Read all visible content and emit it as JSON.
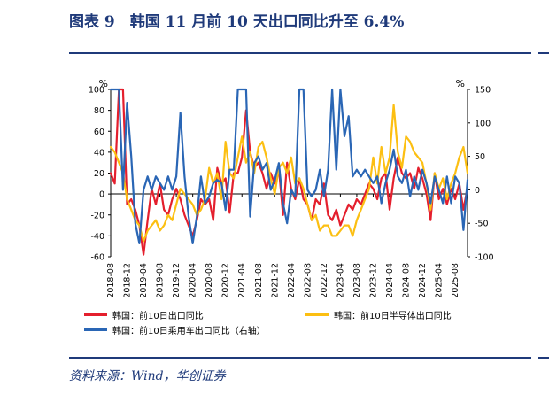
{
  "figure": {
    "title": "图表 9　韩国 11 月前 10 天出口同比升至 6.4%",
    "source": "资料来源：Wind，华创证券"
  },
  "chart_data": {
    "type": "line",
    "left_axis": {
      "unit": "%",
      "ylim": [
        -60,
        100
      ],
      "ticks": [
        "-60",
        "-40",
        "-20",
        "0",
        "20",
        "40",
        "60",
        "80",
        "100"
      ]
    },
    "right_axis": {
      "unit": "%",
      "ylim": [
        -100,
        150
      ],
      "ticks": [
        "-100",
        "-50",
        "0",
        "50",
        "100",
        "150"
      ]
    },
    "x_ticks": [
      "2018-08",
      "2018-12",
      "2019-04",
      "2019-08",
      "2019-12",
      "2020-04",
      "2020-08",
      "2020-12",
      "2021-04",
      "2021-08",
      "2021-12",
      "2022-04",
      "2022-08",
      "2022-12",
      "2023-04",
      "2023-08",
      "2023-12",
      "2024-04",
      "2024-08",
      "2024-12",
      "2025-04",
      "2025-08"
    ],
    "x_range": [
      "2018-08",
      "2025-11"
    ],
    "grid": false,
    "legend_position": "bottom",
    "series": [
      {
        "name": "韩国：前10日出口同比",
        "color": "#e41f2d",
        "axis": "left",
        "x": [
          "2018-08",
          "2018-09",
          "2018-10",
          "2018-11",
          "2018-12",
          "2019-01",
          "2019-02",
          "2019-03",
          "2019-04",
          "2019-05",
          "2019-06",
          "2019-07",
          "2019-08",
          "2019-09",
          "2019-10",
          "2019-11",
          "2019-12",
          "2020-01",
          "2020-02",
          "2020-03",
          "2020-04",
          "2020-05",
          "2020-06",
          "2020-07",
          "2020-08",
          "2020-09",
          "2020-10",
          "2020-11",
          "2020-12",
          "2021-01",
          "2021-02",
          "2021-03",
          "2021-04",
          "2021-05",
          "2021-06",
          "2021-07",
          "2021-08",
          "2021-09",
          "2021-10",
          "2021-11",
          "2021-12",
          "2022-01",
          "2022-02",
          "2022-03",
          "2022-04",
          "2022-05",
          "2022-06",
          "2022-07",
          "2022-08",
          "2022-09",
          "2022-10",
          "2022-11",
          "2022-12",
          "2023-01",
          "2023-02",
          "2023-03",
          "2023-04",
          "2023-05",
          "2023-06",
          "2023-07",
          "2023-08",
          "2023-09",
          "2023-10",
          "2023-11",
          "2023-12",
          "2024-01",
          "2024-02",
          "2024-03",
          "2024-04",
          "2024-05",
          "2024-06",
          "2024-07",
          "2024-08",
          "2024-09",
          "2024-10",
          "2024-11",
          "2024-12",
          "2025-01",
          "2025-02",
          "2025-03",
          "2025-04",
          "2025-05",
          "2025-06",
          "2025-07",
          "2025-08",
          "2025-09",
          "2025-10",
          "2025-11"
        ],
        "values": [
          20,
          10,
          100,
          100,
          -10,
          -5,
          -15,
          -30,
          -58,
          -25,
          5,
          -10,
          10,
          -15,
          -20,
          -5,
          5,
          -5,
          -20,
          -30,
          -40,
          -25,
          -5,
          -10,
          -5,
          -25,
          25,
          10,
          15,
          -18,
          20,
          20,
          35,
          80,
          40,
          25,
          30,
          20,
          5,
          20,
          10,
          25,
          -20,
          30,
          5,
          -5,
          15,
          -5,
          -10,
          -25,
          -5,
          -10,
          10,
          -20,
          -25,
          -15,
          -30,
          -20,
          -10,
          -15,
          -5,
          -10,
          0,
          10,
          5,
          -5,
          15,
          20,
          -15,
          15,
          35,
          20,
          15,
          20,
          5,
          25,
          15,
          0,
          -25,
          20,
          -5,
          5,
          -10,
          5,
          -5,
          10,
          -15,
          6.4
        ]
      },
      {
        "name": "韩国：前10日半导体出口同比",
        "color": "#fcbf12",
        "axis": "left",
        "x": [
          "2018-08",
          "2018-09",
          "2018-10",
          "2018-11",
          "2018-12",
          "2019-01",
          "2019-02",
          "2019-03",
          "2019-04",
          "2019-05",
          "2019-06",
          "2019-07",
          "2019-08",
          "2019-09",
          "2019-10",
          "2019-11",
          "2019-12",
          "2020-01",
          "2020-02",
          "2020-03",
          "2020-04",
          "2020-05",
          "2020-06",
          "2020-07",
          "2020-08",
          "2020-09",
          "2020-10",
          "2020-11",
          "2020-12",
          "2021-01",
          "2021-02",
          "2021-03",
          "2021-04",
          "2021-05",
          "2021-06",
          "2021-07",
          "2021-08",
          "2021-09",
          "2021-10",
          "2021-11",
          "2021-12",
          "2022-01",
          "2022-02",
          "2022-03",
          "2022-04",
          "2022-05",
          "2022-06",
          "2022-07",
          "2022-08",
          "2022-09",
          "2022-10",
          "2022-11",
          "2022-12",
          "2023-01",
          "2023-02",
          "2023-03",
          "2023-04",
          "2023-05",
          "2023-06",
          "2023-07",
          "2023-08",
          "2023-09",
          "2023-10",
          "2023-11",
          "2023-12",
          "2024-01",
          "2024-02",
          "2024-03",
          "2024-04",
          "2024-05",
          "2024-06",
          "2024-07",
          "2024-08",
          "2024-09",
          "2024-10",
          "2024-11",
          "2024-12",
          "2025-01",
          "2025-02",
          "2025-03",
          "2025-04",
          "2025-05",
          "2025-06",
          "2025-07",
          "2025-08",
          "2025-09",
          "2025-10",
          "2025-11"
        ],
        "values": [
          45,
          40,
          30,
          20,
          -5,
          -15,
          -25,
          -30,
          -45,
          -35,
          -30,
          -25,
          -35,
          -30,
          -20,
          -25,
          -10,
          5,
          0,
          -5,
          -10,
          -20,
          -15,
          -5,
          25,
          10,
          20,
          -5,
          50,
          20,
          15,
          35,
          55,
          30,
          40,
          20,
          45,
          50,
          35,
          15,
          0,
          25,
          30,
          20,
          35,
          10,
          15,
          5,
          -10,
          -25,
          -20,
          -35,
          -30,
          -30,
          -40,
          -40,
          -35,
          -30,
          -30,
          -40,
          -25,
          -15,
          -5,
          5,
          35,
          10,
          45,
          20,
          35,
          85,
          40,
          25,
          55,
          50,
          40,
          35,
          30,
          10,
          -15,
          20,
          5,
          15,
          -5,
          10,
          20,
          35,
          45,
          20
        ]
      },
      {
        "name": "韩国：前10日乘用车出口同比（右轴）",
        "color": "#2a66b5",
        "axis": "right",
        "x": [
          "2018-08",
          "2018-09",
          "2018-10",
          "2018-11",
          "2018-12",
          "2019-01",
          "2019-02",
          "2019-03",
          "2019-04",
          "2019-05",
          "2019-06",
          "2019-07",
          "2019-08",
          "2019-09",
          "2019-10",
          "2019-11",
          "2019-12",
          "2020-01",
          "2020-02",
          "2020-03",
          "2020-04",
          "2020-05",
          "2020-06",
          "2020-07",
          "2020-08",
          "2020-09",
          "2020-10",
          "2020-11",
          "2020-12",
          "2021-01",
          "2021-02",
          "2021-03",
          "2021-04",
          "2021-05",
          "2021-06",
          "2021-07",
          "2021-08",
          "2021-09",
          "2021-10",
          "2021-11",
          "2021-12",
          "2022-01",
          "2022-02",
          "2022-03",
          "2022-04",
          "2022-05",
          "2022-06",
          "2022-07",
          "2022-08",
          "2022-09",
          "2022-10",
          "2022-11",
          "2022-12",
          "2023-01",
          "2023-02",
          "2023-03",
          "2023-04",
          "2023-05",
          "2023-06",
          "2023-07",
          "2023-08",
          "2023-09",
          "2023-10",
          "2023-11",
          "2023-12",
          "2024-01",
          "2024-02",
          "2024-03",
          "2024-04",
          "2024-05",
          "2024-06",
          "2024-07",
          "2024-08",
          "2024-09",
          "2024-10",
          "2024-11",
          "2024-12",
          "2025-01",
          "2025-02",
          "2025-03",
          "2025-04",
          "2025-05",
          "2025-06",
          "2025-07",
          "2025-08",
          "2025-09",
          "2025-10",
          "2025-11"
        ],
        "values": [
          150,
          150,
          150,
          0,
          130,
          50,
          -50,
          -80,
          0,
          20,
          0,
          20,
          10,
          0,
          20,
          0,
          20,
          115,
          20,
          -40,
          -80,
          -40,
          20,
          -20,
          -10,
          10,
          15,
          10,
          -30,
          30,
          30,
          150,
          150,
          150,
          -40,
          40,
          50,
          30,
          40,
          0,
          15,
          40,
          -20,
          -50,
          0,
          -10,
          150,
          150,
          0,
          -10,
          0,
          30,
          -10,
          30,
          150,
          30,
          150,
          80,
          110,
          20,
          30,
          20,
          30,
          20,
          10,
          20,
          -20,
          10,
          30,
          60,
          20,
          10,
          30,
          -10,
          20,
          0,
          30,
          10,
          -20,
          20,
          0,
          -20,
          20,
          -20,
          20,
          10,
          -60,
          15
        ]
      }
    ]
  }
}
